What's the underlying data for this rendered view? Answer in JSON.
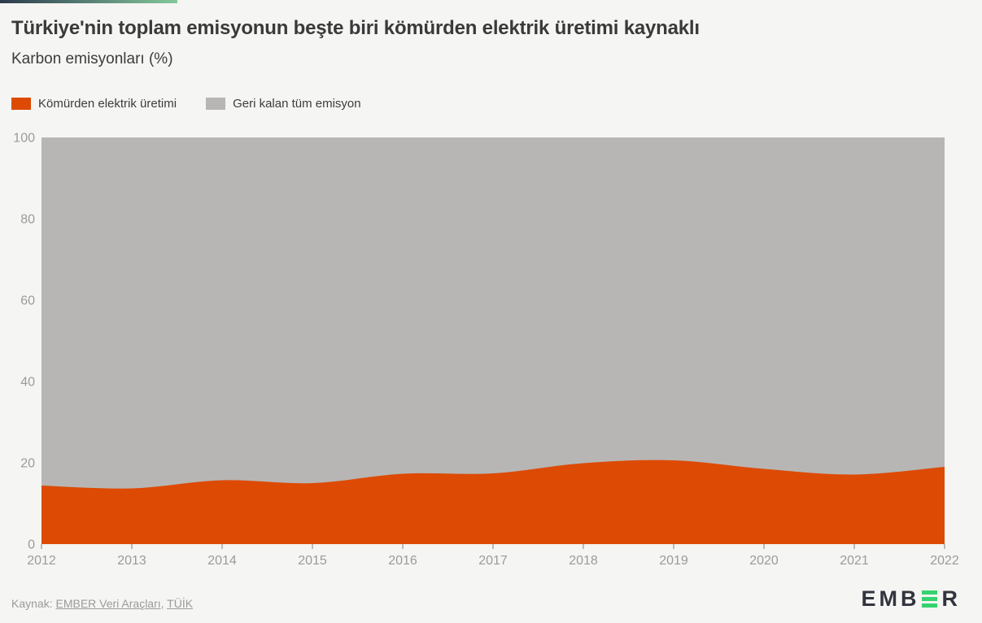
{
  "page": {
    "background": "#f5f5f3"
  },
  "accent_bar": {
    "color_start": "#2c3a4e",
    "color_end": "#84c89b"
  },
  "chart_data": {
    "type": "area",
    "stacked": true,
    "percent": true,
    "title": "Türkiye'nin toplam emisyonun beşte biri kömürden elektrik üretimi kaynaklı",
    "subtitle": "Karbon emisyonları (%)",
    "x": [
      2012,
      2013,
      2014,
      2015,
      2016,
      2017,
      2018,
      2019,
      2020,
      2021,
      2022
    ],
    "series": [
      {
        "name": "Kömürden elektrik üretimi",
        "color": "#dd4a04",
        "values": [
          14.4,
          13.7,
          15.7,
          15.0,
          17.3,
          17.4,
          19.9,
          20.6,
          18.5,
          17.1,
          19.0
        ]
      },
      {
        "name": "Geri kalan tüm emisyon",
        "color": "#b7b6b4",
        "values": [
          85.6,
          86.3,
          84.3,
          85.0,
          82.7,
          82.6,
          80.1,
          79.4,
          81.5,
          82.9,
          81.0
        ]
      }
    ],
    "ylim": [
      0,
      100
    ],
    "yticks": [
      0,
      20,
      40,
      60,
      80,
      100
    ],
    "xlabel": "",
    "ylabel": "",
    "grid": false,
    "legend_position": "top-left",
    "axis_text_color": "#9b9b99",
    "tick_color": "#a6a6a3"
  },
  "footer": {
    "source_prefix": "Kaynak: ",
    "links": [
      {
        "label": "EMBER Veri Araçları"
      },
      {
        "label": "TÜİK"
      }
    ],
    "separator": ", ",
    "logo": {
      "text_before": "EMB",
      "text_after": "R",
      "icon": "ember-green-e-icon",
      "dark_color": "#32343e",
      "green_color": "#35d36f"
    }
  }
}
